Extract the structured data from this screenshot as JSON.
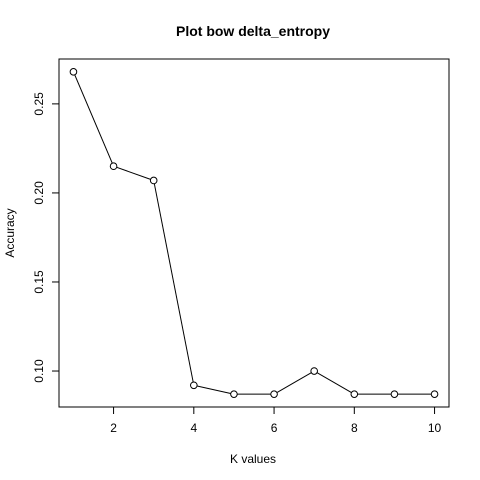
{
  "chart_data": {
    "type": "line",
    "title": "Plot bow delta_entropy",
    "xlabel": "K values",
    "ylabel": "Accuracy",
    "x": [
      1,
      2,
      3,
      4,
      5,
      6,
      7,
      8,
      9,
      10
    ],
    "series": [
      {
        "values": [
          0.268,
          0.215,
          0.207,
          0.092,
          0.087,
          0.087,
          0.1,
          0.087,
          0.087,
          0.087
        ]
      }
    ],
    "xlim": [
      0.64,
      10.36
    ],
    "ylim": [
      0.0798,
      0.2752
    ],
    "xticks": [
      2,
      4,
      6,
      8,
      10
    ],
    "yticks": [
      0.1,
      0.15,
      0.2,
      0.25
    ],
    "ytick_labels": [
      "0.10",
      "0.15",
      "0.20",
      "0.25"
    ],
    "grid": false,
    "marker": "open-circle",
    "line_color": "#000000"
  }
}
